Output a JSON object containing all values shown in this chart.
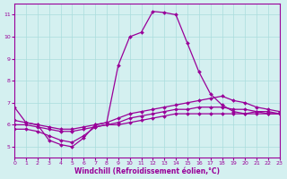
{
  "xlabel": "Windchill (Refroidissement éolien,°C)",
  "ylabel": "",
  "background_color": "#d4f0f0",
  "line_color": "#990099",
  "grid_color": "#aadddd",
  "xlim": [
    0,
    23
  ],
  "ylim": [
    4.5,
    11.5
  ],
  "xticks": [
    0,
    1,
    2,
    3,
    4,
    5,
    6,
    7,
    8,
    9,
    10,
    11,
    12,
    13,
    14,
    15,
    16,
    17,
    18,
    19,
    20,
    21,
    22,
    23
  ],
  "yticks": [
    5,
    6,
    7,
    8,
    9,
    10,
    11
  ],
  "series": [
    {
      "x": [
        0,
        1,
        2,
        3,
        4,
        5,
        6,
        7,
        8,
        9,
        10,
        11,
        12,
        13,
        14,
        15,
        16,
        17,
        18,
        19,
        20,
        21,
        22,
        23
      ],
      "y": [
        6.8,
        6.1,
        6.0,
        5.3,
        5.1,
        5.0,
        5.4,
        6.0,
        6.1,
        8.7,
        10.0,
        10.2,
        11.15,
        11.1,
        11.0,
        9.7,
        8.4,
        7.4,
        6.9,
        6.6,
        6.5,
        6.6,
        6.5,
        6.5
      ]
    },
    {
      "x": [
        0,
        1,
        2,
        3,
        4,
        5,
        6,
        7,
        8,
        9,
        10,
        11,
        12,
        13,
        14,
        15,
        16,
        17,
        18,
        19,
        20,
        21,
        22,
        23
      ],
      "y": [
        6.2,
        6.1,
        6.0,
        5.9,
        5.8,
        5.8,
        5.9,
        6.0,
        6.1,
        6.3,
        6.5,
        6.6,
        6.7,
        6.8,
        6.9,
        7.0,
        7.1,
        7.2,
        7.3,
        7.1,
        7.0,
        6.8,
        6.7,
        6.6
      ]
    },
    {
      "x": [
        0,
        1,
        2,
        3,
        4,
        5,
        6,
        7,
        8,
        9,
        10,
        11,
        12,
        13,
        14,
        15,
        16,
        17,
        18,
        19,
        20,
        21,
        22,
        23
      ],
      "y": [
        6.0,
        6.0,
        5.9,
        5.8,
        5.7,
        5.7,
        5.8,
        5.9,
        6.0,
        6.1,
        6.3,
        6.4,
        6.5,
        6.6,
        6.7,
        6.7,
        6.8,
        6.8,
        6.8,
        6.7,
        6.7,
        6.6,
        6.6,
        6.5
      ]
    },
    {
      "x": [
        0,
        1,
        2,
        3,
        4,
        5,
        6,
        7,
        8,
        9,
        10,
        11,
        12,
        13,
        14,
        15,
        16,
        17,
        18,
        19,
        20,
        21,
        22,
        23
      ],
      "y": [
        5.8,
        5.8,
        5.7,
        5.5,
        5.3,
        5.2,
        5.5,
        5.9,
        6.0,
        6.0,
        6.1,
        6.2,
        6.3,
        6.4,
        6.5,
        6.5,
        6.5,
        6.5,
        6.5,
        6.5,
        6.5,
        6.5,
        6.5,
        6.5
      ]
    }
  ],
  "marker": "D",
  "markersize": 2.0,
  "linewidth": 0.9
}
